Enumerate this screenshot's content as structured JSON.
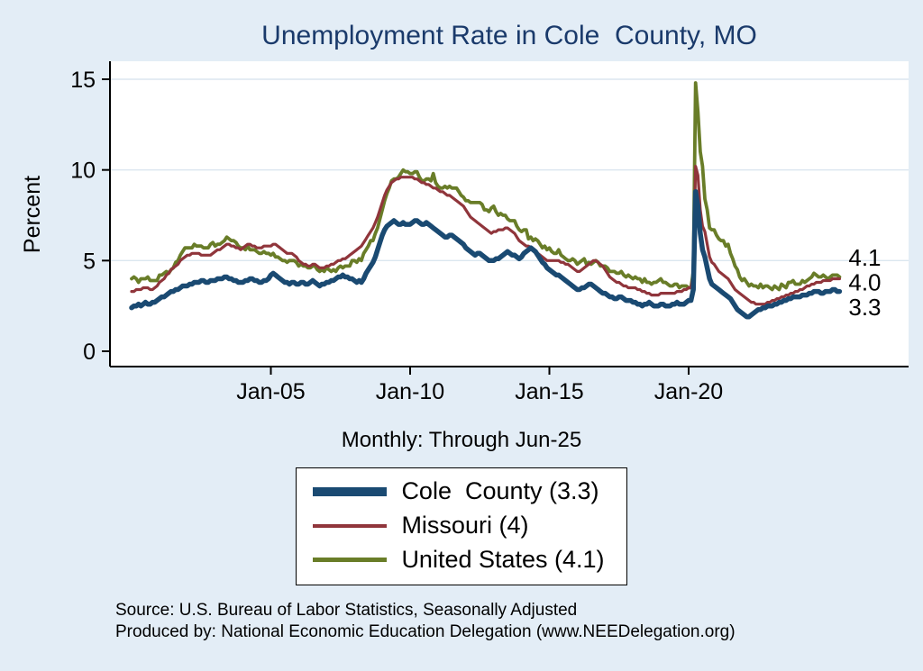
{
  "title": "Unemployment Rate in Cole  County, MO",
  "ylabel": "Percent",
  "subtitle": "Monthly: Through Jun-25",
  "source_line1": "Source: U.S. Bureau of Labor Statistics, Seasonally Adjusted",
  "source_line2": "Produced by: National Economic Education Delegation (www.NEEDelegation.org)",
  "colors": {
    "page_bg": "#e3edf6",
    "plot_bg": "#ffffff",
    "grid": "#dbe6ef",
    "axis": "#000000",
    "title": "#1a3a6b",
    "text": "#000000"
  },
  "chart_data": {
    "type": "line",
    "frequency": "monthly",
    "x_range_years": [
      2000.0,
      2025.4167
    ],
    "ylim": [
      0,
      15.5
    ],
    "y_ticks": [
      0,
      5,
      10,
      15
    ],
    "x_ticks": [
      {
        "value": 2005,
        "label": "Jan-05"
      },
      {
        "value": 2010,
        "label": "Jan-10"
      },
      {
        "value": 2015,
        "label": "Jan-15"
      },
      {
        "value": 2020,
        "label": "Jan-20"
      }
    ],
    "grid": true,
    "legend_position": "bottom",
    "series": [
      {
        "name": "Cole  County (3.3)",
        "color": "#1a4a72",
        "width": 5.5,
        "swatch_height": 10,
        "end_label": "3.3",
        "start": "Jan-2000",
        "values": [
          2.4,
          2.5,
          2.5,
          2.6,
          2.5,
          2.6,
          2.7,
          2.6,
          2.6,
          2.7,
          2.7,
          2.8,
          2.9,
          3.0,
          3.0,
          3.1,
          3.2,
          3.3,
          3.3,
          3.4,
          3.4,
          3.5,
          3.6,
          3.6,
          3.6,
          3.7,
          3.7,
          3.8,
          3.8,
          3.8,
          3.9,
          3.9,
          3.8,
          3.8,
          3.9,
          3.9,
          3.9,
          4.0,
          4.0,
          4.0,
          4.1,
          4.1,
          4.0,
          4.0,
          3.9,
          3.9,
          3.8,
          3.8,
          3.8,
          3.9,
          3.9,
          4.0,
          4.0,
          3.9,
          3.9,
          3.8,
          3.8,
          3.9,
          3.9,
          4.0,
          4.2,
          4.3,
          4.2,
          4.1,
          4.0,
          3.9,
          3.8,
          3.8,
          3.7,
          3.8,
          3.8,
          3.7,
          3.7,
          3.8,
          3.8,
          3.7,
          3.7,
          3.8,
          3.9,
          3.8,
          3.7,
          3.6,
          3.7,
          3.7,
          3.8,
          3.8,
          3.9,
          3.9,
          4.0,
          4.1,
          4.1,
          4.2,
          4.1,
          4.1,
          4.0,
          4.0,
          3.9,
          3.8,
          3.9,
          3.8,
          4.0,
          4.3,
          4.5,
          4.7,
          4.9,
          5.2,
          5.6,
          6.0,
          6.4,
          6.7,
          6.9,
          7.0,
          7.1,
          7.2,
          7.1,
          7.0,
          7.0,
          7.1,
          7.0,
          7.0,
          7.0,
          7.1,
          7.2,
          7.2,
          7.1,
          7.0,
          7.0,
          7.1,
          7.0,
          6.9,
          6.8,
          6.7,
          6.6,
          6.5,
          6.4,
          6.3,
          6.3,
          6.4,
          6.4,
          6.3,
          6.2,
          6.1,
          6.0,
          5.9,
          5.7,
          5.6,
          5.5,
          5.4,
          5.3,
          5.4,
          5.4,
          5.3,
          5.2,
          5.1,
          5.0,
          5.0,
          5.0,
          5.1,
          5.1,
          5.2,
          5.3,
          5.4,
          5.5,
          5.4,
          5.3,
          5.3,
          5.2,
          5.1,
          5.2,
          5.4,
          5.5,
          5.6,
          5.7,
          5.6,
          5.5,
          5.3,
          5.1,
          4.9,
          4.8,
          4.6,
          4.5,
          4.4,
          4.3,
          4.2,
          4.2,
          4.1,
          4.0,
          3.9,
          3.8,
          3.7,
          3.6,
          3.5,
          3.4,
          3.4,
          3.5,
          3.5,
          3.6,
          3.7,
          3.7,
          3.6,
          3.5,
          3.4,
          3.3,
          3.2,
          3.2,
          3.1,
          3.0,
          3.0,
          2.9,
          2.9,
          3.0,
          3.0,
          2.9,
          2.8,
          2.8,
          2.8,
          2.7,
          2.7,
          2.6,
          2.6,
          2.5,
          2.6,
          2.6,
          2.7,
          2.6,
          2.5,
          2.5,
          2.5,
          2.6,
          2.6,
          2.5,
          2.5,
          2.5,
          2.6,
          2.6,
          2.7,
          2.6,
          2.6,
          2.6,
          2.7,
          2.8,
          2.8,
          3.4,
          8.8,
          8.0,
          6.5,
          5.6,
          5.2,
          4.6,
          4.0,
          3.7,
          3.6,
          3.5,
          3.4,
          3.3,
          3.2,
          3.1,
          3.0,
          2.9,
          2.7,
          2.5,
          2.3,
          2.2,
          2.1,
          2.0,
          1.9,
          1.9,
          2.0,
          2.1,
          2.2,
          2.3,
          2.3,
          2.4,
          2.4,
          2.5,
          2.5,
          2.5,
          2.6,
          2.6,
          2.7,
          2.7,
          2.8,
          2.8,
          2.9,
          2.9,
          3.0,
          3.0,
          3.0,
          3.0,
          3.1,
          3.1,
          3.1,
          3.2,
          3.2,
          3.3,
          3.3,
          3.3,
          3.2,
          3.2,
          3.3,
          3.3,
          3.3,
          3.4,
          3.4,
          3.3,
          3.3
        ]
      },
      {
        "name": "Missouri (4)",
        "color": "#90353b",
        "width": 3.2,
        "swatch_height": 4,
        "end_label": "4.0",
        "start": "Jan-2000",
        "values": [
          3.3,
          3.3,
          3.4,
          3.4,
          3.4,
          3.5,
          3.5,
          3.5,
          3.4,
          3.4,
          3.5,
          3.6,
          3.8,
          3.9,
          4.0,
          4.2,
          4.3,
          4.5,
          4.6,
          4.7,
          4.8,
          5.0,
          5.1,
          5.2,
          5.3,
          5.3,
          5.4,
          5.4,
          5.4,
          5.4,
          5.3,
          5.3,
          5.3,
          5.3,
          5.3,
          5.4,
          5.5,
          5.6,
          5.6,
          5.7,
          5.8,
          5.9,
          5.9,
          5.8,
          5.8,
          5.7,
          5.7,
          5.6,
          5.7,
          5.8,
          5.9,
          5.9,
          5.8,
          5.8,
          5.7,
          5.7,
          5.7,
          5.8,
          5.8,
          5.8,
          5.8,
          5.9,
          5.9,
          5.8,
          5.7,
          5.6,
          5.5,
          5.4,
          5.4,
          5.4,
          5.3,
          5.2,
          5.0,
          4.9,
          4.8,
          4.8,
          4.7,
          4.7,
          4.8,
          4.8,
          4.7,
          4.6,
          4.6,
          4.6,
          4.7,
          4.7,
          4.8,
          4.8,
          4.9,
          5.0,
          5.0,
          5.1,
          5.1,
          5.2,
          5.3,
          5.4,
          5.5,
          5.6,
          5.7,
          5.8,
          6.0,
          6.2,
          6.4,
          6.6,
          6.8,
          7.1,
          7.4,
          7.8,
          8.2,
          8.6,
          8.9,
          9.1,
          9.3,
          9.4,
          9.5,
          9.5,
          9.6,
          9.6,
          9.6,
          9.6,
          9.6,
          9.6,
          9.5,
          9.5,
          9.4,
          9.3,
          9.3,
          9.2,
          9.2,
          9.1,
          9.0,
          9.0,
          8.9,
          8.8,
          8.8,
          8.7,
          8.6,
          8.6,
          8.5,
          8.4,
          8.3,
          8.2,
          8.1,
          8.0,
          7.8,
          7.6,
          7.4,
          7.3,
          7.2,
          7.1,
          7.0,
          6.9,
          6.8,
          6.7,
          6.6,
          6.5,
          6.6,
          6.6,
          6.7,
          6.7,
          6.7,
          6.8,
          6.8,
          6.7,
          6.6,
          6.5,
          6.3,
          6.1,
          6.0,
          5.9,
          5.8,
          5.8,
          5.7,
          5.6,
          5.5,
          5.4,
          5.3,
          5.2,
          5.1,
          5.0,
          5.0,
          5.0,
          5.0,
          5.0,
          5.0,
          4.9,
          4.9,
          4.8,
          4.8,
          4.7,
          4.6,
          4.5,
          4.4,
          4.4,
          4.5,
          4.6,
          4.7,
          4.8,
          4.9,
          5.0,
          5.0,
          4.9,
          4.8,
          4.7,
          4.5,
          4.3,
          4.1,
          4.0,
          3.9,
          3.8,
          3.8,
          3.7,
          3.6,
          3.6,
          3.5,
          3.5,
          3.5,
          3.5,
          3.4,
          3.4,
          3.3,
          3.3,
          3.2,
          3.2,
          3.1,
          3.1,
          3.1,
          3.1,
          3.2,
          3.2,
          3.2,
          3.2,
          3.2,
          3.2,
          3.2,
          3.3,
          3.3,
          3.3,
          3.4,
          3.4,
          3.5,
          3.5,
          4.2,
          10.2,
          9.7,
          7.8,
          6.9,
          6.6,
          5.9,
          5.2,
          4.9,
          4.8,
          4.6,
          4.4,
          4.3,
          4.2,
          4.1,
          4.0,
          3.8,
          3.6,
          3.4,
          3.3,
          3.2,
          3.1,
          3.0,
          2.9,
          2.8,
          2.7,
          2.7,
          2.6,
          2.6,
          2.6,
          2.6,
          2.6,
          2.7,
          2.7,
          2.8,
          2.8,
          2.9,
          2.9,
          3.0,
          3.0,
          3.1,
          3.1,
          3.2,
          3.2,
          3.3,
          3.3,
          3.4,
          3.4,
          3.5,
          3.6,
          3.6,
          3.7,
          3.7,
          3.8,
          3.8,
          3.8,
          3.9,
          3.9,
          3.9,
          3.9,
          4.0,
          4.0,
          4.0,
          4.0
        ]
      },
      {
        "name": "United States (4.1)",
        "color": "#697d28",
        "width": 3.8,
        "swatch_height": 5,
        "end_label": "4.1",
        "start": "Jan-2000",
        "values": [
          4.0,
          4.1,
          4.0,
          3.8,
          4.0,
          4.0,
          4.0,
          4.1,
          3.9,
          3.9,
          3.9,
          3.9,
          4.2,
          4.2,
          4.3,
          4.4,
          4.3,
          4.5,
          4.6,
          4.9,
          5.0,
          5.3,
          5.5,
          5.7,
          5.7,
          5.7,
          5.7,
          5.9,
          5.8,
          5.8,
          5.8,
          5.7,
          5.7,
          5.7,
          5.9,
          6.0,
          5.8,
          5.9,
          5.9,
          6.0,
          6.1,
          6.3,
          6.2,
          6.1,
          6.1,
          6.0,
          5.8,
          5.7,
          5.7,
          5.6,
          5.8,
          5.6,
          5.6,
          5.6,
          5.5,
          5.4,
          5.4,
          5.5,
          5.4,
          5.4,
          5.3,
          5.4,
          5.2,
          5.2,
          5.1,
          5.0,
          5.0,
          4.9,
          5.0,
          5.0,
          5.0,
          4.9,
          4.7,
          4.8,
          4.7,
          4.7,
          4.6,
          4.6,
          4.7,
          4.7,
          4.5,
          4.4,
          4.5,
          4.4,
          4.6,
          4.5,
          4.4,
          4.5,
          4.4,
          4.6,
          4.7,
          4.6,
          4.7,
          4.7,
          4.7,
          5.0,
          5.0,
          4.9,
          5.1,
          5.0,
          5.4,
          5.6,
          5.8,
          6.1,
          6.1,
          6.5,
          6.8,
          7.3,
          7.8,
          8.3,
          8.7,
          9.0,
          9.4,
          9.5,
          9.5,
          9.6,
          9.8,
          10.0,
          9.9,
          9.9,
          9.8,
          9.8,
          9.9,
          9.9,
          9.6,
          9.4,
          9.4,
          9.5,
          9.5,
          9.4,
          9.8,
          9.3,
          9.1,
          9.0,
          9.0,
          9.1,
          9.0,
          9.1,
          9.0,
          9.0,
          9.0,
          8.8,
          8.6,
          8.5,
          8.3,
          8.3,
          8.2,
          8.2,
          8.2,
          8.2,
          8.2,
          8.1,
          7.8,
          7.8,
          7.7,
          7.9,
          8.0,
          7.7,
          7.5,
          7.6,
          7.5,
          7.5,
          7.3,
          7.2,
          7.2,
          7.2,
          6.9,
          6.7,
          6.6,
          6.7,
          6.7,
          6.2,
          6.3,
          6.1,
          6.2,
          6.1,
          5.9,
          5.7,
          5.8,
          5.6,
          5.7,
          5.5,
          5.4,
          5.4,
          5.6,
          5.3,
          5.2,
          5.1,
          5.0,
          5.0,
          5.1,
          5.0,
          4.8,
          4.9,
          5.0,
          5.1,
          4.8,
          4.9,
          4.8,
          4.9,
          5.0,
          4.9,
          4.7,
          4.7,
          4.7,
          4.6,
          4.4,
          4.4,
          4.4,
          4.3,
          4.3,
          4.4,
          4.2,
          4.1,
          4.2,
          4.1,
          4.0,
          4.1,
          4.0,
          4.0,
          3.8,
          4.0,
          3.8,
          3.8,
          3.7,
          3.8,
          3.8,
          3.9,
          4.0,
          3.8,
          3.8,
          3.7,
          3.6,
          3.6,
          3.7,
          3.7,
          3.5,
          3.6,
          3.6,
          3.6,
          3.5,
          3.5,
          4.4,
          14.8,
          13.2,
          11.0,
          10.2,
          8.4,
          7.8,
          6.8,
          6.7,
          6.7,
          6.4,
          6.2,
          6.1,
          6.1,
          5.8,
          5.9,
          5.4,
          5.1,
          4.7,
          4.5,
          4.1,
          3.9,
          4.0,
          3.8,
          3.6,
          3.7,
          3.6,
          3.6,
          3.5,
          3.7,
          3.5,
          3.6,
          3.6,
          3.5,
          3.4,
          3.6,
          3.5,
          3.4,
          3.7,
          3.6,
          3.5,
          3.8,
          3.8,
          3.9,
          3.7,
          3.7,
          3.7,
          3.9,
          3.8,
          3.9,
          4.0,
          4.1,
          4.3,
          4.2,
          4.1,
          4.1,
          4.2,
          4.1,
          4.0,
          4.1,
          4.2,
          4.2,
          4.2,
          4.1
        ]
      }
    ]
  }
}
